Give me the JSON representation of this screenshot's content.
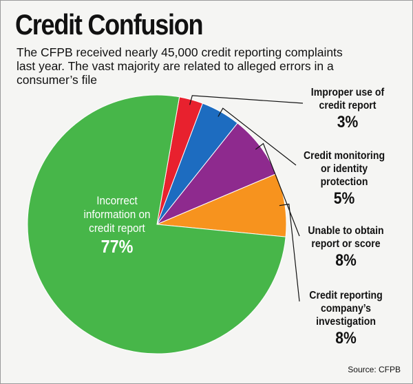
{
  "header": {
    "title": "Credit Confusion",
    "subtitle_lines": [
      "The CFPB received nearly 45,000 credit reporting complaints",
      "last year. The vast majority are related to alleged errors in a",
      "consumer’s file"
    ]
  },
  "source": "Source: CFPB",
  "chart_data": {
    "type": "pie",
    "title": "Credit Confusion",
    "slices": [
      {
        "label_lines": [
          "Improper use of",
          "credit report"
        ],
        "value": 3,
        "value_label": "3%",
        "color": "#e8212e"
      },
      {
        "label_lines": [
          "Credit monitoring",
          "or identity",
          "protection"
        ],
        "value": 5,
        "value_label": "5%",
        "color": "#1d6cc0"
      },
      {
        "label_lines": [
          "Unable to obtain",
          "report or score"
        ],
        "value": 8,
        "value_label": "8%",
        "color": "#8e2a8e"
      },
      {
        "label_lines": [
          "Credit reporting",
          "company’s",
          "investigation"
        ],
        "value": 8,
        "value_label": "8%",
        "color": "#f7931e"
      },
      {
        "label_lines": [
          "Incorrect",
          "information on",
          "credit report"
        ],
        "value": 77,
        "value_label": "77%",
        "color": "#47b649"
      }
    ]
  }
}
